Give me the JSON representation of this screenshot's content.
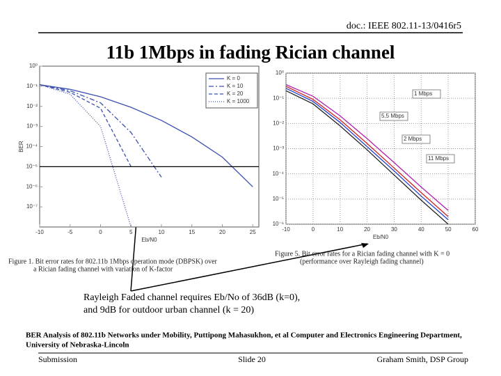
{
  "header": "doc.: IEEE 802.11-13/0416r5",
  "title": "11b 1Mbps in fading Rician channel",
  "figures": [
    {
      "type": "line",
      "ylabel": "BER",
      "xlabel": "Eb/N0",
      "log_y": true,
      "grid": false,
      "x": [
        -10,
        -5,
        0,
        5,
        10,
        15,
        20,
        25
      ],
      "xlim": [
        -10,
        26
      ],
      "xticks": [
        -10,
        -5,
        0,
        5,
        10,
        15,
        20,
        25
      ],
      "ylim": [
        1e-08,
        1
      ],
      "yticks": [
        {
          "value": 1,
          "label": "10⁰"
        },
        {
          "value": 0.1,
          "label": "10⁻¹"
        },
        {
          "value": 0.01,
          "label": "10⁻²"
        },
        {
          "value": 0.001,
          "label": "10⁻³"
        },
        {
          "value": 0.0001,
          "label": "10⁻⁴"
        },
        {
          "value": 1e-05,
          "label": "10⁻⁵"
        },
        {
          "value": 1e-06,
          "label": "10⁻⁶"
        },
        {
          "value": 1e-07,
          "label": "10⁻⁷"
        }
      ],
      "series": [
        {
          "name": "K = 0",
          "color": "#3a4fb0",
          "dash": "none",
          "values": [
            0.12,
            0.07,
            0.03,
            0.009,
            0.002,
            0.0003,
            3e-05,
            1e-06
          ]
        },
        {
          "name": "K = 10",
          "color": "#3a4fb0",
          "dash": "7,3,2,3",
          "values": [
            0.12,
            0.06,
            0.015,
            0.0005,
            3e-06,
            null,
            null,
            null
          ]
        },
        {
          "name": "K = 20",
          "color": "#3a4fb0",
          "dash": "5,3",
          "values": [
            0.12,
            0.05,
            0.008,
            1e-05,
            null,
            null,
            null,
            null
          ]
        },
        {
          "name": "K = 1000",
          "color": "#3a4fb0",
          "dash": "1,2",
          "values": [
            0.12,
            0.04,
            0.001,
            1e-08,
            null,
            null,
            null,
            null
          ]
        }
      ],
      "caption": [
        "Figure 1.   Bit error rates for 802.11b 1Mbps operation mode (DBPSK) over",
        "a Rician fading channel with variation of K-factor"
      ]
    },
    {
      "type": "line",
      "ylabel": null,
      "xlabel": "Eb/N0",
      "log_y": true,
      "grid": true,
      "x": [
        -10,
        0,
        10,
        20,
        30,
        40,
        50,
        60
      ],
      "xlim": [
        -10,
        60
      ],
      "xticks": [
        -10,
        0,
        10,
        20,
        30,
        40,
        50,
        60
      ],
      "ylim": [
        1e-06,
        1
      ],
      "yticks": [
        {
          "value": 1,
          "label": "10⁰"
        },
        {
          "value": 0.1,
          "label": "10⁻¹"
        },
        {
          "value": 0.01,
          "label": "10⁻²"
        },
        {
          "value": 0.001,
          "label": "10⁻³"
        },
        {
          "value": 0.0001,
          "label": "10⁻⁴"
        },
        {
          "value": 1e-05,
          "label": "10⁻⁵"
        },
        {
          "value": 1e-06,
          "label": "10⁻⁶"
        }
      ],
      "series": [
        {
          "name": "1 Mbps",
          "color": "#222222",
          "dash": "none",
          "values": [
            0.2,
            0.06,
            0.008,
            0.0009,
            9e-05,
            9e-06,
            1e-06,
            null
          ]
        },
        {
          "name": "5.5 Mbps",
          "color": "#d02020",
          "dash": "none",
          "values": [
            0.3,
            0.09,
            0.014,
            0.0016,
            0.00017,
            1.8e-05,
            2e-06,
            null
          ]
        },
        {
          "name": "2 Mbps",
          "color": "#2040d0",
          "dash": "none",
          "values": [
            0.25,
            0.075,
            0.011,
            0.0012,
            0.00013,
            1.3e-05,
            1.5e-06,
            null
          ]
        },
        {
          "name": "11 Mbps",
          "color": "#b020b0",
          "dash": "none",
          "values": [
            0.35,
            0.12,
            0.02,
            0.0025,
            0.00028,
            3e-05,
            3.5e-06,
            null
          ]
        }
      ],
      "caption": [
        "Figure 5.   Bit error rates for a Rician fading channel with K = 0",
        "(performance over Rayleigh fading channel)"
      ]
    }
  ],
  "note": [
    "Rayleigh Faded channel requires Eb/No of 36dB (k=0),",
    "and 9dB for outdoor urban channel (k = 20)"
  ],
  "citation": [
    "BER Analysis of 802.11b Networks under Mobility, Puttipong Mahasukhon, et al Computer and Electronics Engineering Department,",
    "University of Nebraska-Lincoln"
  ],
  "footer": {
    "left": "Submission",
    "center": "Slide 20",
    "right": "Graham Smith, DSP Group"
  }
}
